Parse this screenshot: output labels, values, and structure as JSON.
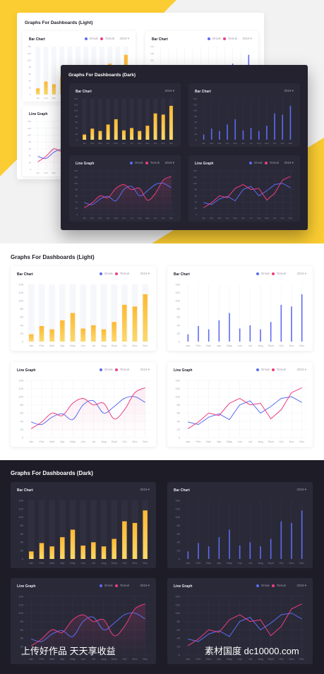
{
  "hero": {
    "light_title": "Graphs For Dashboards (Light)",
    "dark_title": "Graphs For Dashboards (Dark)",
    "accent": "#fbcd32"
  },
  "sections": {
    "light_title": "Graphs For Dashboards (Light)",
    "dark_title": "Graphs For Dashboards (Dark)"
  },
  "cards": {
    "bar_title": "Bar Chart",
    "line_title": "Line Graph",
    "legend_a": "Omuk",
    "legend_b": "Tomuk",
    "year": "2019 ▾"
  },
  "colors": {
    "bar_gradient_top": "#fdb933",
    "bar_gradient_bottom": "#fbd96a",
    "blue": "#5c6cf2",
    "pink": "#ee3d82",
    "light_bg": "#ffffff",
    "dark_bg": "#1d1c27",
    "dark_card": "#2a2937"
  },
  "watermark": {
    "left": "上传好作品 天天享收益",
    "right": "素材国度 dc10000.com"
  },
  "chart_data": [
    {
      "type": "bar",
      "title": "Bar Chart",
      "categories": [
        "Jan",
        "Feb",
        "Mar",
        "Apr",
        "May",
        "Jun",
        "Jul",
        "Aug",
        "Sept",
        "Oct",
        "Nov",
        "Dec"
      ],
      "values": [
        18,
        38,
        30,
        52,
        70,
        32,
        40,
        30,
        48,
        90,
        86,
        116
      ],
      "ylim": [
        0,
        140
      ],
      "yticks": [
        0,
        20,
        40,
        60,
        80,
        100,
        120,
        140
      ]
    },
    {
      "type": "line",
      "title": "Line Graph",
      "categories": [
        "Jan",
        "Feb",
        "Mar",
        "Apr",
        "May",
        "Jun",
        "Jul",
        "Aug",
        "Sept",
        "Oct",
        "Nov",
        "Dec"
      ],
      "series": [
        {
          "name": "Omuk",
          "values": [
            38,
            32,
            50,
            58,
            44,
            80,
            90,
            60,
            76,
            96,
            100,
            86
          ]
        },
        {
          "name": "Tomuk",
          "values": [
            22,
            38,
            60,
            54,
            84,
            96,
            80,
            84,
            46,
            68,
            110,
            122
          ]
        }
      ],
      "ylim": [
        0,
        140
      ],
      "yticks": [
        0,
        20,
        40,
        60,
        80,
        100,
        120,
        140
      ]
    }
  ]
}
